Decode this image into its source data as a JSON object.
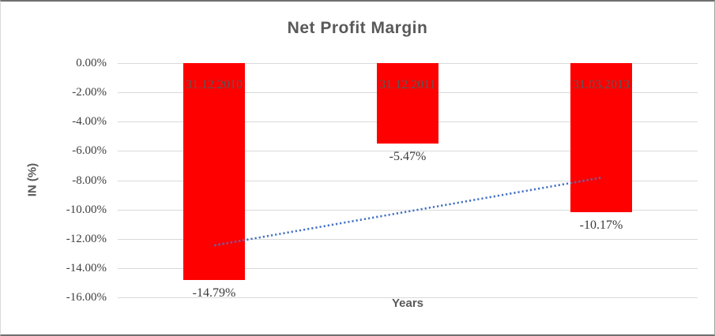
{
  "chart_data": {
    "type": "bar",
    "title": "Net Profit Margin",
    "xlabel": "Years",
    "ylabel": "IN (%)",
    "categories": [
      "31.12.2010",
      "31.12.2011",
      "31.03.2013"
    ],
    "values": [
      -14.79,
      -5.47,
      -10.17
    ],
    "value_labels": [
      "-14.79%",
      "-5.47%",
      "-10.17%"
    ],
    "y_tick_labels": [
      "0.00%",
      "-2.00%",
      "-4.00%",
      "-6.00%",
      "-8.00%",
      "-10.00%",
      "-12.00%",
      "-14.00%",
      "-16.00%"
    ],
    "ylim": [
      -16,
      0
    ],
    "grid": true,
    "legend_position": "none",
    "colors": {
      "bar": "#FF0000",
      "trendline": "#4472C4",
      "gridline": "#D9D9D9",
      "title_text": "#595959",
      "tick_text": "#404040",
      "category_text": "#595959",
      "value_text": "#3A3A3A"
    },
    "trendline": {
      "shape": "linear",
      "line_style": "dotted",
      "start_value": -12.45,
      "end_value": -7.83
    }
  }
}
